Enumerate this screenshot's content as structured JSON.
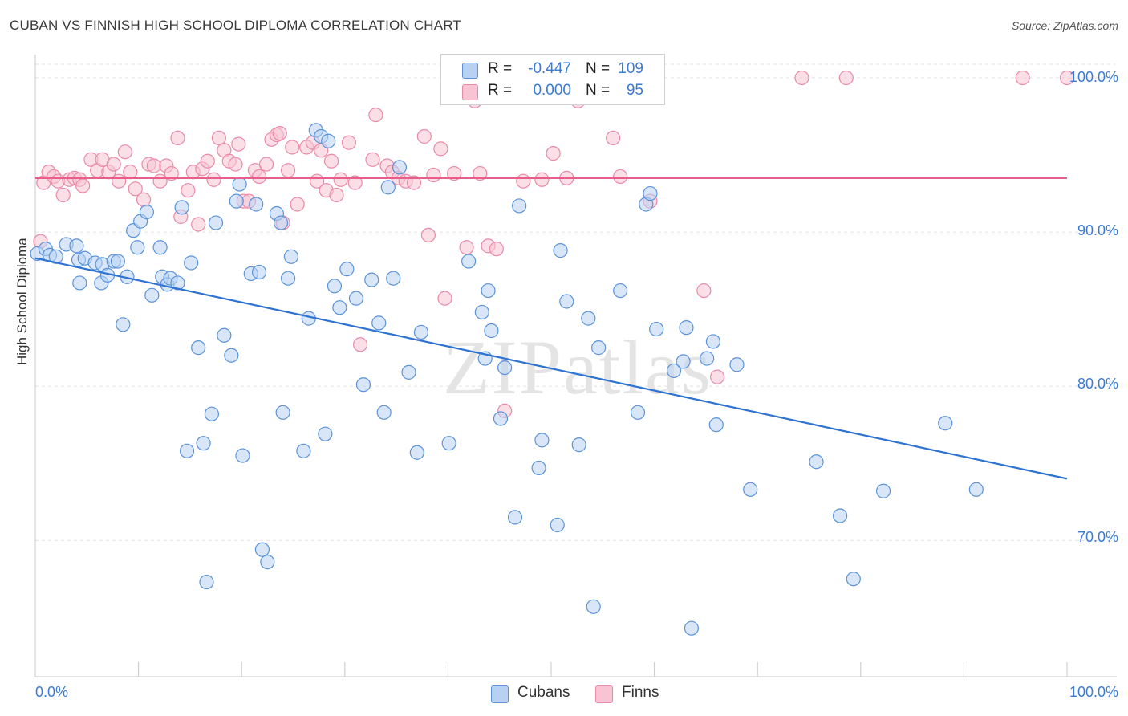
{
  "title": "CUBAN VS FINNISH HIGH SCHOOL DIPLOMA CORRELATION CHART",
  "source": "Source: ZipAtlas.com",
  "watermark": "ZIPatlas",
  "legend": {
    "rows": [
      {
        "r_label": "R =",
        "r_value": "-0.447",
        "n_label": "N =",
        "n_value": "109"
      },
      {
        "r_label": "R =",
        "r_value": "0.000",
        "n_label": "N =",
        "n_value": "95"
      }
    ]
  },
  "series_labels": {
    "cubans": "Cubans",
    "finns": "Finns"
  },
  "axis": {
    "ylabel": "High School Diploma",
    "x_left": "0.0%",
    "x_right": "100.0%",
    "y_ticks": [
      "100.0%",
      "90.0%",
      "80.0%",
      "70.0%"
    ]
  },
  "colors": {
    "cubans_fill": "#b8d1f2",
    "cubans_stroke": "#5b93d9",
    "cubans_line": "#2e72d2",
    "finns_fill": "#f8c4d4",
    "finns_stroke": "#e98aa9",
    "finns_line": "#e85d8a",
    "tick_text": "#3a7bd5"
  },
  "chart_data": {
    "type": "scatter",
    "title": "CUBAN VS FINNISH HIGH SCHOOL DIPLOMA CORRELATION CHART",
    "xlabel": "",
    "ylabel": "High School Diploma",
    "xlim": [
      0,
      100
    ],
    "ylim": [
      62,
      101
    ],
    "y_ticks": [
      70,
      80,
      90,
      100
    ],
    "grid": true,
    "legend_position": "top-center",
    "series": [
      {
        "name": "Cubans",
        "trend": {
          "x": [
            0,
            100
          ],
          "y": [
            88.3,
            74.0
          ]
        },
        "points": [
          [
            0.2,
            88.6
          ],
          [
            1,
            88.9
          ],
          [
            1.4,
            88.5
          ],
          [
            2,
            88.4
          ],
          [
            3,
            89.2
          ],
          [
            4,
            89.1
          ],
          [
            4.2,
            88.2
          ],
          [
            4.3,
            86.7
          ],
          [
            4.8,
            88.3
          ],
          [
            5.8,
            88.0
          ],
          [
            6.4,
            86.7
          ],
          [
            6.5,
            87.9
          ],
          [
            7,
            87.2
          ],
          [
            7.6,
            88.1
          ],
          [
            8,
            88.1
          ],
          [
            8.5,
            84.0
          ],
          [
            8.9,
            87.1
          ],
          [
            9.5,
            90.1
          ],
          [
            9.9,
            89.0
          ],
          [
            10.2,
            90.7
          ],
          [
            10.8,
            91.3
          ],
          [
            11.3,
            85.9
          ],
          [
            12.1,
            89.0
          ],
          [
            12.3,
            87.1
          ],
          [
            12.8,
            86.6
          ],
          [
            13.1,
            87.0
          ],
          [
            13.8,
            86.7
          ],
          [
            14.2,
            91.6
          ],
          [
            14.7,
            75.8
          ],
          [
            15.1,
            88.0
          ],
          [
            15.8,
            82.5
          ],
          [
            16.3,
            76.3
          ],
          [
            16.6,
            67.3
          ],
          [
            17.1,
            78.2
          ],
          [
            17.5,
            90.6
          ],
          [
            18.3,
            83.3
          ],
          [
            19,
            82.0
          ],
          [
            19.5,
            92.0
          ],
          [
            19.8,
            93.1
          ],
          [
            20.1,
            75.5
          ],
          [
            20.9,
            87.3
          ],
          [
            21.4,
            91.8
          ],
          [
            21.7,
            87.4
          ],
          [
            22,
            69.4
          ],
          [
            22.5,
            68.6
          ],
          [
            23.4,
            91.2
          ],
          [
            23.8,
            90.6
          ],
          [
            24,
            78.3
          ],
          [
            24.5,
            87.0
          ],
          [
            24.8,
            88.4
          ],
          [
            26,
            75.8
          ],
          [
            26.5,
            84.4
          ],
          [
            27.2,
            96.6
          ],
          [
            27.7,
            96.2
          ],
          [
            28.1,
            76.9
          ],
          [
            28.4,
            95.9
          ],
          [
            29,
            86.5
          ],
          [
            29.5,
            85.1
          ],
          [
            30.2,
            87.6
          ],
          [
            31.1,
            85.7
          ],
          [
            31.8,
            80.1
          ],
          [
            32.6,
            86.9
          ],
          [
            33.3,
            84.1
          ],
          [
            33.8,
            78.3
          ],
          [
            34.2,
            92.9
          ],
          [
            34.7,
            87.0
          ],
          [
            35.3,
            94.2
          ],
          [
            36.2,
            80.9
          ],
          [
            37,
            75.7
          ],
          [
            37.4,
            83.5
          ],
          [
            40.1,
            76.3
          ],
          [
            42,
            88.1
          ],
          [
            43.3,
            84.8
          ],
          [
            43.6,
            81.8
          ],
          [
            43.9,
            86.2
          ],
          [
            44.2,
            83.6
          ],
          [
            45.1,
            77.9
          ],
          [
            45.5,
            81.2
          ],
          [
            46.5,
            71.5
          ],
          [
            46.9,
            91.7
          ],
          [
            48.8,
            74.7
          ],
          [
            49.1,
            76.5
          ],
          [
            50.6,
            71.0
          ],
          [
            50.9,
            88.8
          ],
          [
            51.5,
            85.5
          ],
          [
            52.7,
            76.2
          ],
          [
            53.6,
            84.4
          ],
          [
            54.1,
            65.7
          ],
          [
            54.6,
            82.5
          ],
          [
            56.7,
            86.2
          ],
          [
            58.4,
            78.3
          ],
          [
            59.2,
            91.8
          ],
          [
            59.6,
            92.5
          ],
          [
            60.2,
            83.7
          ],
          [
            61.9,
            81.0
          ],
          [
            62.8,
            81.6
          ],
          [
            63.1,
            83.8
          ],
          [
            63.6,
            64.3
          ],
          [
            65.1,
            81.8
          ],
          [
            65.7,
            82.9
          ],
          [
            66,
            77.5
          ],
          [
            68,
            81.4
          ],
          [
            69.3,
            73.3
          ],
          [
            75.7,
            75.1
          ],
          [
            78,
            71.6
          ],
          [
            79.3,
            67.5
          ],
          [
            82.2,
            73.2
          ],
          [
            88.2,
            77.6
          ],
          [
            91.2,
            73.3
          ]
        ]
      },
      {
        "name": "Finns",
        "trend": {
          "x": [
            0,
            100
          ],
          "y": [
            93.5,
            93.5
          ]
        },
        "points": [
          [
            0.5,
            89.4
          ],
          [
            0.8,
            93.2
          ],
          [
            1.3,
            93.9
          ],
          [
            1.8,
            93.6
          ],
          [
            2.2,
            93.3
          ],
          [
            2.7,
            92.4
          ],
          [
            3.3,
            93.4
          ],
          [
            3.8,
            93.5
          ],
          [
            4.3,
            93.4
          ],
          [
            4.6,
            93.0
          ],
          [
            5.4,
            94.7
          ],
          [
            6,
            94.0
          ],
          [
            6.5,
            94.7
          ],
          [
            7.1,
            93.9
          ],
          [
            7.6,
            94.4
          ],
          [
            8.1,
            93.3
          ],
          [
            8.7,
            95.2
          ],
          [
            9.2,
            93.9
          ],
          [
            9.7,
            92.8
          ],
          [
            10.5,
            92.1
          ],
          [
            11,
            94.4
          ],
          [
            11.5,
            94.3
          ],
          [
            12.1,
            93.3
          ],
          [
            12.7,
            94.3
          ],
          [
            13.2,
            93.8
          ],
          [
            13.8,
            96.1
          ],
          [
            14.1,
            91.0
          ],
          [
            14.8,
            92.7
          ],
          [
            15.3,
            93.9
          ],
          [
            15.8,
            90.5
          ],
          [
            16.2,
            94.1
          ],
          [
            16.7,
            94.6
          ],
          [
            17.3,
            93.4
          ],
          [
            17.8,
            96.1
          ],
          [
            18.3,
            95.3
          ],
          [
            18.8,
            94.6
          ],
          [
            19.4,
            94.4
          ],
          [
            19.7,
            95.7
          ],
          [
            20.2,
            92.0
          ],
          [
            20.7,
            92.0
          ],
          [
            21.3,
            94.0
          ],
          [
            21.7,
            93.6
          ],
          [
            22.4,
            94.4
          ],
          [
            22.9,
            96.0
          ],
          [
            23.4,
            96.3
          ],
          [
            23.7,
            96.4
          ],
          [
            24,
            90.6
          ],
          [
            24.5,
            94.0
          ],
          [
            24.9,
            95.5
          ],
          [
            25.4,
            91.8
          ],
          [
            26.3,
            95.5
          ],
          [
            26.9,
            95.8
          ],
          [
            27.3,
            93.3
          ],
          [
            27.7,
            95.3
          ],
          [
            28.2,
            92.7
          ],
          [
            28.7,
            94.6
          ],
          [
            29.2,
            92.4
          ],
          [
            29.6,
            93.4
          ],
          [
            30.4,
            95.8
          ],
          [
            31,
            93.2
          ],
          [
            31.5,
            82.7
          ],
          [
            32.7,
            94.7
          ],
          [
            33,
            97.6
          ],
          [
            34.1,
            94.3
          ],
          [
            34.6,
            93.9
          ],
          [
            35.2,
            93.5
          ],
          [
            35.9,
            93.3
          ],
          [
            36.7,
            93.2
          ],
          [
            37.7,
            96.2
          ],
          [
            38.1,
            89.8
          ],
          [
            38.6,
            93.7
          ],
          [
            39.3,
            95.4
          ],
          [
            39.7,
            85.7
          ],
          [
            40.6,
            93.8
          ],
          [
            41.8,
            89.0
          ],
          [
            42.6,
            98.5
          ],
          [
            43.1,
            93.8
          ],
          [
            43.9,
            89.1
          ],
          [
            44.7,
            88.9
          ],
          [
            45.5,
            78.4
          ],
          [
            47.3,
            93.3
          ],
          [
            49.1,
            93.4
          ],
          [
            50.2,
            95.1
          ],
          [
            51.5,
            93.5
          ],
          [
            52.6,
            98.5
          ],
          [
            56,
            96.1
          ],
          [
            56.7,
            93.6
          ],
          [
            58.5,
            100.0
          ],
          [
            59.6,
            92.0
          ],
          [
            64.8,
            86.2
          ],
          [
            66.1,
            80.6
          ],
          [
            74.3,
            100.0
          ],
          [
            78.6,
            100.0
          ],
          [
            95.7,
            100.0
          ],
          [
            100,
            100.0
          ]
        ]
      }
    ]
  }
}
